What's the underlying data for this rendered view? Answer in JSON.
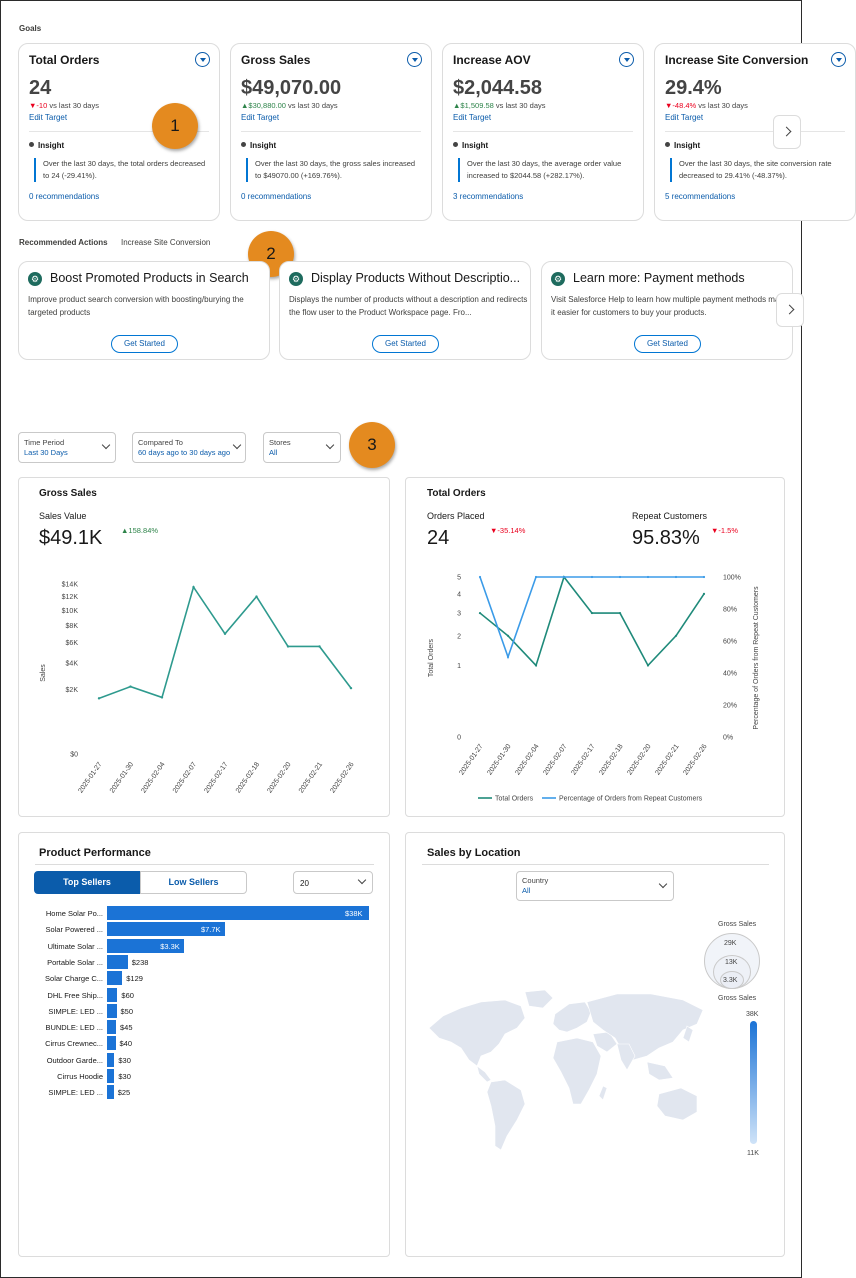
{
  "goals": {
    "section_label": "Goals",
    "cards": [
      {
        "title": "Total Orders",
        "value": "24",
        "delta": "▼-10",
        "delta_dir": "down",
        "delta_suffix": " vs last 30 days",
        "edit": "Edit Target",
        "insight_heading": "Insight",
        "insight": "Over the last 30 days, the total orders decreased to 24 (-29.41%).",
        "recs": "0 recommendations"
      },
      {
        "title": "Gross Sales",
        "value": "$49,070.00",
        "delta": "▲$30,880.00",
        "delta_dir": "up",
        "delta_suffix": " vs last 30 days",
        "edit": "Edit Target",
        "insight_heading": "Insight",
        "insight": "Over the last 30 days, the gross sales increased to $49070.00 (+169.76%).",
        "recs": "0 recommendations"
      },
      {
        "title": "Increase AOV",
        "value": "$2,044.58",
        "delta": "▲$1,509.58",
        "delta_dir": "up",
        "delta_suffix": " vs last 30 days",
        "edit": "Edit Target",
        "insight_heading": "Insight",
        "insight": "Over the last 30 days, the average order value increased to $2044.58 (+282.17%).",
        "recs": "3 recommendations"
      },
      {
        "title": "Increase Site Conversion",
        "value": "29.4%",
        "delta": "▼-48.4%",
        "delta_dir": "down",
        "delta_suffix": " vs last 30 days",
        "edit": "Edit Target",
        "insight_heading": "Insight",
        "insight": "Over the last 30 days, the site conversion rate decreased to 29.41% (-48.37%).",
        "recs": "5 recommendations"
      }
    ]
  },
  "callouts": [
    "1",
    "2",
    "3"
  ],
  "recommended": {
    "label": "Recommended Actions",
    "filter": "Increase Site Conversion",
    "cards": [
      {
        "title": "Boost Promoted Products in Search",
        "desc": "Improve product search conversion with boosting/burying the targeted products",
        "button": "Get Started"
      },
      {
        "title": "Display Products Without Descriptio...",
        "desc": "Displays the number of products without a description and redirects the flow user to the Product Workspace page. Fro...",
        "button": "Get Started"
      },
      {
        "title": "Learn more: Payment methods",
        "desc": "Visit Salesforce Help to learn how multiple payment methods make it easier for customers to buy your products.",
        "button": "Get Started"
      }
    ]
  },
  "filters": [
    {
      "label": "Time Period",
      "value": "Last 30 Days"
    },
    {
      "label": "Compared To",
      "value": "60 days ago to 30 days ago"
    },
    {
      "label": "Stores",
      "value": "All"
    }
  ],
  "gross_sales": {
    "title": "Gross Sales",
    "metric_label": "Sales Value",
    "metric_value": "$49.1K",
    "metric_delta": "▲158.84%",
    "y_label": "Sales",
    "y_ticks": [
      "$14K",
      "$12K",
      "$10K",
      "$8K",
      "$6K",
      "$4K",
      "$2K",
      "$0"
    ]
  },
  "total_orders": {
    "title": "Total Orders",
    "m1_label": "Orders Placed",
    "m1_value": "24",
    "m1_delta": "▼-35.14%",
    "m2_label": "Repeat Customers",
    "m2_value": "95.83%",
    "m2_delta": "▼-1.5%",
    "y_left_label": "Total Orders",
    "y_right_label": "Percentage of Orders from Repeat Customers",
    "y_left_ticks": [
      "5",
      "4",
      "3",
      "2",
      "1",
      "0"
    ],
    "y_right_ticks": [
      "100%",
      "80%",
      "60%",
      "40%",
      "20%",
      "0%"
    ],
    "legend": [
      "Total Orders",
      "Percentage of Orders from Repeat Customers"
    ]
  },
  "chart_data": [
    {
      "type": "line",
      "title": "Gross Sales",
      "ylabel": "Sales",
      "x": [
        "2025-01-27",
        "2025-01-30",
        "2025-02-04",
        "2025-02-07",
        "2025-02-17",
        "2025-02-18",
        "2025-02-20",
        "2025-02-21",
        "2025-02-26"
      ],
      "values": [
        1500,
        2200,
        1550,
        13500,
        7000,
        12000,
        5600,
        5600,
        2100
      ],
      "ylim": [
        0,
        14000
      ],
      "y_scale": "sqrt",
      "color": "#2e9a8e"
    },
    {
      "type": "line",
      "title": "Total Orders",
      "x": [
        "2025-01-27",
        "2025-01-30",
        "2025-02-04",
        "2025-02-07",
        "2025-02-17",
        "2025-02-18",
        "2025-02-20",
        "2025-02-21",
        "2025-02-26"
      ],
      "series": [
        {
          "name": "Total Orders",
          "values": [
            3,
            2,
            1,
            5,
            3,
            3,
            1,
            2,
            4
          ],
          "axis": "left",
          "color": "#1f8a7a"
        },
        {
          "name": "Percentage of Orders from Repeat Customers",
          "values": [
            100,
            50,
            100,
            100,
            100,
            100,
            100,
            100,
            100
          ],
          "axis": "right",
          "color": "#3b9be8"
        }
      ],
      "ylim_left": [
        0,
        5
      ],
      "ylim_right": [
        0,
        100
      ]
    },
    {
      "type": "bar",
      "title": "Product Performance",
      "categories": [
        "Home Solar Po...",
        "Solar Powered ...",
        "Ultimate Solar ...",
        "Portable Solar ...",
        "Solar Charge C...",
        "DHL Free Ship...",
        "SIMPLE: LED ...",
        "BUNDLE: LED ...",
        "Cirrus Crewnec...",
        "Outdoor Garde...",
        "Cirrus Hoodie",
        "SIMPLE: LED ..."
      ],
      "values": [
        38000,
        7700,
        3300,
        238,
        129,
        60,
        50,
        45,
        40,
        30,
        30,
        25
      ],
      "value_labels": [
        "$38K",
        "$7.7K",
        "$3.3K",
        "$238",
        "$129",
        "$60",
        "$50",
        "$45",
        "$40",
        "$30",
        "$30",
        "$25"
      ],
      "x_scale": "sqrt",
      "color": "#1b73d6"
    }
  ],
  "product_perf": {
    "title": "Product Performance",
    "tab_top": "Top Sellers",
    "tab_low": "Low Sellers",
    "count": "20"
  },
  "sales_location": {
    "title": "Sales by Location",
    "country_label": "Country",
    "country_value": "All",
    "bubble_legend_title": "Gross Sales",
    "bubble_values": [
      "29K",
      "13K",
      "3.3K"
    ],
    "color_legend_title": "Gross Sales",
    "color_max": "38K",
    "color_min": "11K"
  }
}
